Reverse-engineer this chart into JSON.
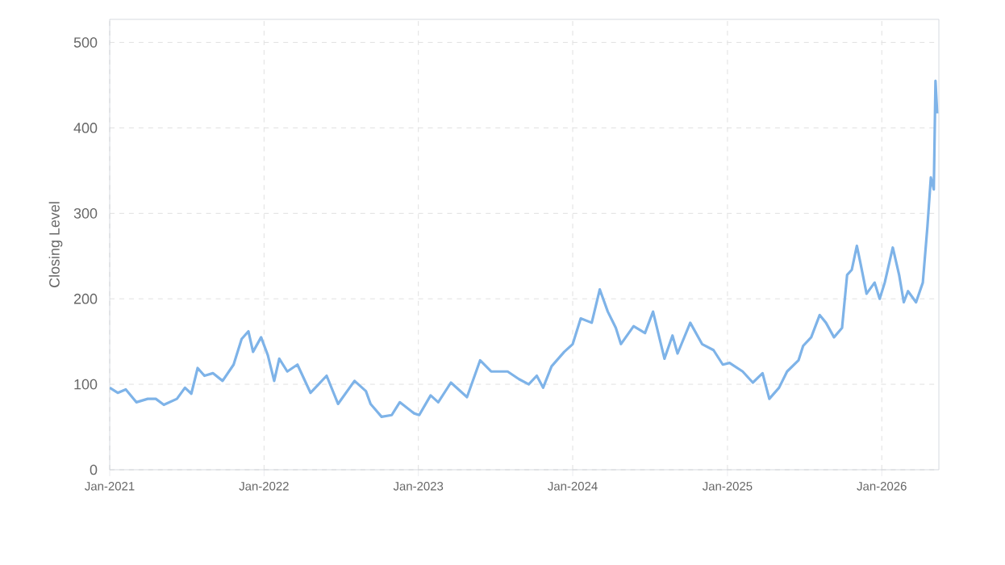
{
  "chart_data": {
    "type": "line",
    "ylabel": "Closing Level",
    "x": [
      "2021-01-01",
      "2021-01-20",
      "2021-02-08",
      "2021-03-05",
      "2021-04-01",
      "2021-04-20",
      "2021-05-09",
      "2021-06-09",
      "2021-06-28",
      "2021-07-13",
      "2021-07-28",
      "2021-08-13",
      "2021-09-02",
      "2021-09-25",
      "2021-10-21",
      "2021-11-09",
      "2021-11-25",
      "2021-12-06",
      "2021-12-25",
      "2022-01-10",
      "2022-01-25",
      "2022-02-06",
      "2022-02-25",
      "2022-03-21",
      "2022-04-21",
      "2022-05-10",
      "2022-05-29",
      "2022-06-25",
      "2022-08-03",
      "2022-08-30",
      "2022-09-10",
      "2022-10-06",
      "2022-10-30",
      "2022-11-18",
      "2022-12-22",
      "2023-01-03",
      "2023-01-30",
      "2023-02-17",
      "2023-03-19",
      "2023-04-26",
      "2023-05-27",
      "2023-06-22",
      "2023-07-31",
      "2023-08-27",
      "2023-09-19",
      "2023-10-08",
      "2023-10-23",
      "2023-11-12",
      "2023-12-12",
      "2024-01-01",
      "2024-01-20",
      "2024-02-15",
      "2024-03-05",
      "2024-03-24",
      "2024-04-12",
      "2024-04-24",
      "2024-05-24",
      "2024-06-20",
      "2024-07-09",
      "2024-08-05",
      "2024-08-24",
      "2024-09-05",
      "2024-10-05",
      "2024-11-02",
      "2024-11-29",
      "2024-12-21",
      "2025-01-06",
      "2025-02-06",
      "2025-03-02",
      "2025-03-25",
      "2025-04-10",
      "2025-05-03",
      "2025-05-22",
      "2025-06-18",
      "2025-06-29",
      "2025-07-18",
      "2025-08-07",
      "2025-08-22",
      "2025-09-10",
      "2025-09-29",
      "2025-10-11",
      "2025-10-22",
      "2025-11-03",
      "2025-11-11",
      "2025-11-26",
      "2025-12-15",
      "2025-12-27",
      "2026-01-08",
      "2026-01-27",
      "2026-02-11",
      "2026-02-22",
      "2026-03-04",
      "2026-03-23",
      "2026-04-08",
      "2026-04-19",
      "2026-04-27",
      "2026-05-04",
      "2026-05-08",
      "2026-05-12"
    ],
    "series": [
      {
        "color": "#7eb3e8",
        "values": [
          96,
          90,
          94,
          79,
          83,
          83,
          76,
          83,
          96,
          89,
          119,
          110,
          113,
          104,
          123,
          153,
          162,
          138,
          155,
          134,
          104,
          130,
          115,
          123,
          90,
          100,
          110,
          77,
          104,
          92,
          77,
          62,
          64,
          79,
          66,
          64,
          87,
          79,
          102,
          85,
          128,
          115,
          115,
          106,
          100,
          110,
          96,
          121,
          138,
          147,
          177,
          172,
          211,
          185,
          166,
          147,
          168,
          160,
          185,
          130,
          157,
          136,
          172,
          147,
          140,
          123,
          125,
          115,
          102,
          113,
          83,
          96,
          115,
          128,
          145,
          155,
          181,
          172,
          155,
          166,
          228,
          234,
          262,
          243,
          206,
          219,
          200,
          219,
          260,
          228,
          196,
          209,
          196,
          219,
          285,
          342,
          328,
          455,
          417
        ]
      }
    ],
    "xlim": [
      "2021-01-01",
      "2026-05-16"
    ],
    "xticks": [
      {
        "value": "2021-01-01",
        "label": "Jan-2021"
      },
      {
        "value": "2022-01-01",
        "label": "Jan-2022"
      },
      {
        "value": "2023-01-01",
        "label": "Jan-2023"
      },
      {
        "value": "2024-01-01",
        "label": "Jan-2024"
      },
      {
        "value": "2025-01-01",
        "label": "Jan-2025"
      },
      {
        "value": "2026-01-01",
        "label": "Jan-2026"
      }
    ],
    "ylim": [
      0,
      527
    ],
    "yticks": [
      0,
      100,
      200,
      300,
      400,
      500
    ],
    "grid": true,
    "marker": "none",
    "line_style": "solid"
  }
}
